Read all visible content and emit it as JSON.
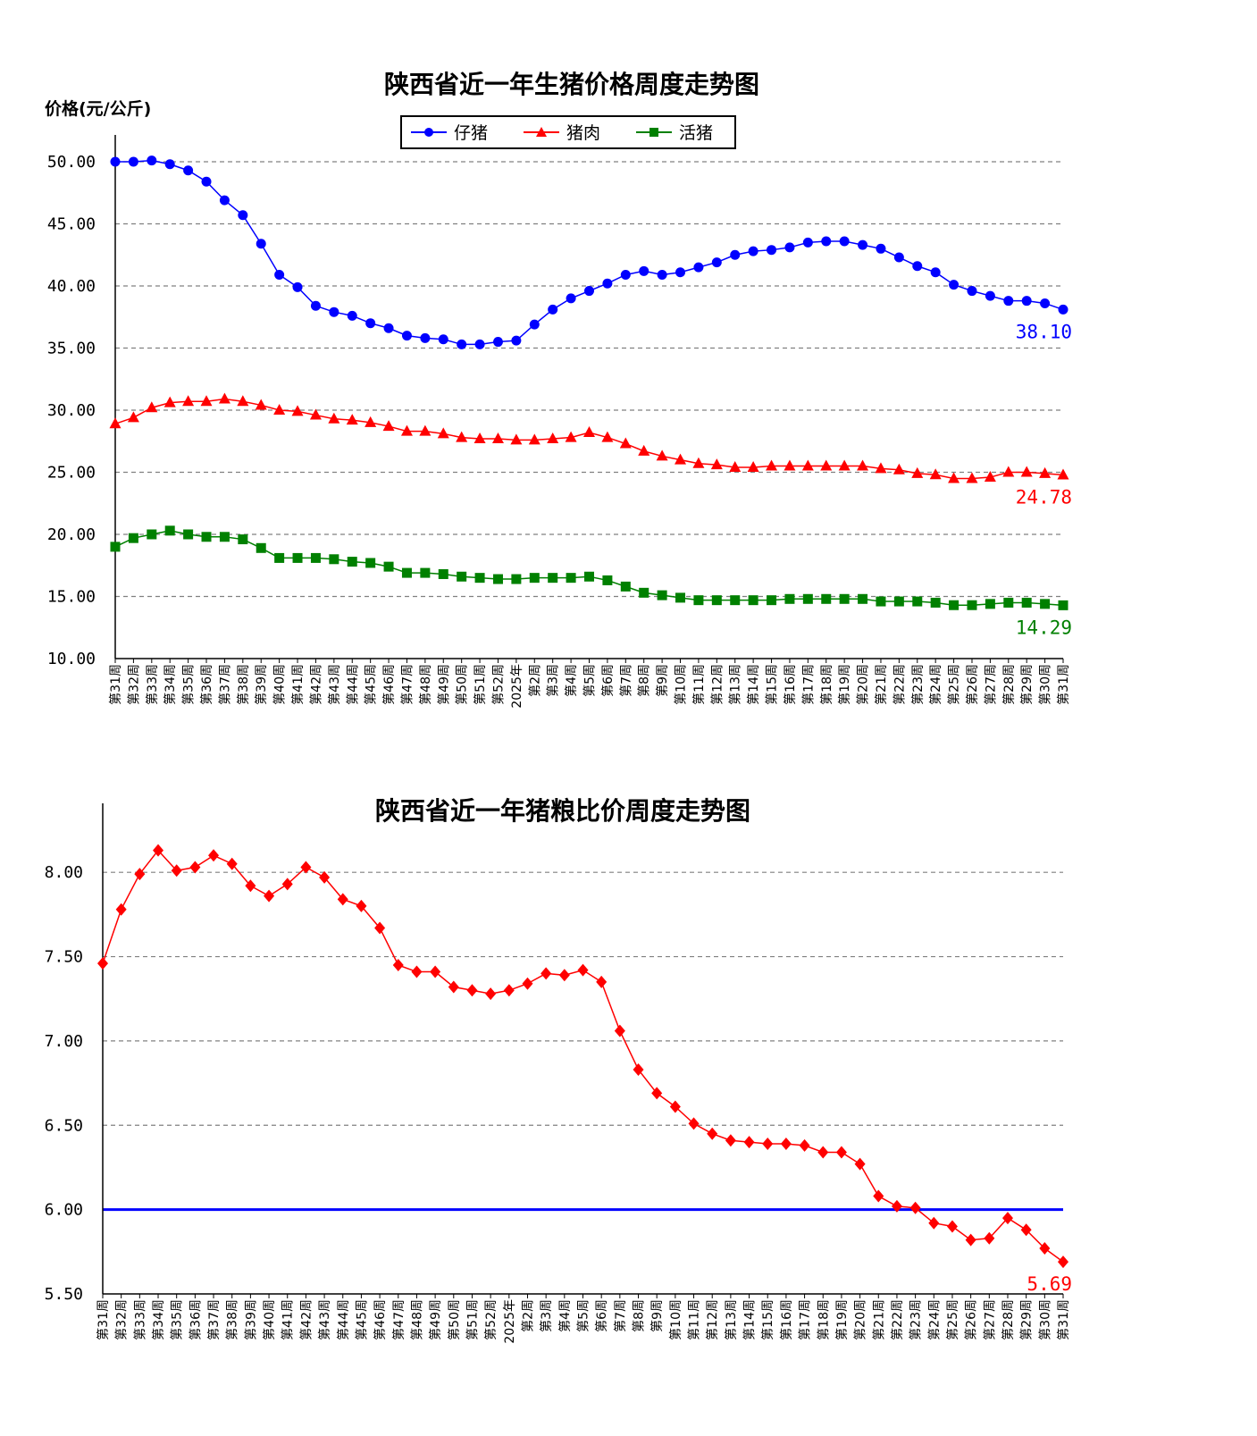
{
  "chart_data": [
    {
      "type": "line",
      "title": "陕西省近一年生猪价格周度走势图",
      "ylabel": "价格(元/公斤)",
      "xlabel": "",
      "ylim": [
        10,
        50
      ],
      "yticks": [
        "50.00",
        "45.00",
        "40.00",
        "35.00",
        "30.00",
        "25.00",
        "20.00",
        "15.00",
        "10.00"
      ],
      "grid": "horizontal-dashed",
      "legend_position": "top-center",
      "categories": [
        "第31周",
        "第32周",
        "第33周",
        "第34周",
        "第35周",
        "第36周",
        "第37周",
        "第38周",
        "第39周",
        "第40周",
        "第41周",
        "第42周",
        "第43周",
        "第44周",
        "第45周",
        "第46周",
        "第47周",
        "第48周",
        "第49周",
        "第50周",
        "第51周",
        "第52周",
        "2025年",
        "第2周",
        "第3周",
        "第4周",
        "第5周",
        "第6周",
        "第7周",
        "第8周",
        "第9周",
        "第10周",
        "第11周",
        "第12周",
        "第13周",
        "第14周",
        "第15周",
        "第16周",
        "第17周",
        "第18周",
        "第19周",
        "第20周",
        "第21周",
        "第22周",
        "第23周",
        "第24周",
        "第25周",
        "第26周",
        "第27周",
        "第28周",
        "第29周",
        "第30周",
        "第31周"
      ],
      "series": [
        {
          "name": "仔猪",
          "color": "#0000ff",
          "marker": "circle",
          "end_label": "38.10",
          "values": [
            50.0,
            50.0,
            50.1,
            49.8,
            49.3,
            48.4,
            46.9,
            45.7,
            43.4,
            40.9,
            39.9,
            38.4,
            37.9,
            37.6,
            37.0,
            36.6,
            36.0,
            35.8,
            35.7,
            35.3,
            35.3,
            35.5,
            35.6,
            36.9,
            38.1,
            39.0,
            39.6,
            40.2,
            40.9,
            41.2,
            40.9,
            41.1,
            41.5,
            41.9,
            42.5,
            42.8,
            42.9,
            43.1,
            43.5,
            43.6,
            43.6,
            43.3,
            43.0,
            42.3,
            41.6,
            41.1,
            40.1,
            39.6,
            39.2,
            38.8,
            38.8,
            38.6,
            38.1
          ]
        },
        {
          "name": "猪肉",
          "color": "#ff0000",
          "marker": "triangle",
          "end_label": "24.78",
          "values": [
            28.9,
            29.4,
            30.2,
            30.6,
            30.7,
            30.7,
            30.9,
            30.7,
            30.4,
            30.0,
            29.9,
            29.6,
            29.3,
            29.2,
            29.0,
            28.7,
            28.3,
            28.3,
            28.1,
            27.8,
            27.7,
            27.7,
            27.6,
            27.6,
            27.7,
            27.8,
            28.2,
            27.8,
            27.3,
            26.7,
            26.3,
            26.0,
            25.7,
            25.6,
            25.4,
            25.4,
            25.5,
            25.5,
            25.5,
            25.5,
            25.5,
            25.5,
            25.3,
            25.2,
            24.9,
            24.8,
            24.5,
            24.5,
            24.6,
            25.0,
            25.0,
            24.9,
            24.78
          ]
        },
        {
          "name": "活猪",
          "color": "#008000",
          "marker": "square",
          "end_label": "14.29",
          "values": [
            19.0,
            19.7,
            20.0,
            20.3,
            20.0,
            19.8,
            19.8,
            19.6,
            18.9,
            18.1,
            18.1,
            18.1,
            18.0,
            17.8,
            17.7,
            17.4,
            16.9,
            16.9,
            16.8,
            16.6,
            16.5,
            16.4,
            16.4,
            16.5,
            16.5,
            16.5,
            16.6,
            16.3,
            15.8,
            15.3,
            15.1,
            14.9,
            14.7,
            14.7,
            14.7,
            14.7,
            14.7,
            14.8,
            14.8,
            14.8,
            14.8,
            14.8,
            14.6,
            14.6,
            14.6,
            14.5,
            14.3,
            14.3,
            14.4,
            14.5,
            14.5,
            14.4,
            14.29
          ]
        }
      ]
    },
    {
      "type": "line",
      "title": "陕西省近一年猪粮比价周度走势图",
      "xlabel": "",
      "ylabel": "",
      "ylim": [
        5.5,
        8.25
      ],
      "yticks": [
        "8.00",
        "7.50",
        "7.00",
        "6.50",
        "6.00",
        "5.50"
      ],
      "grid": "horizontal-dashed",
      "reference_line": {
        "value": 6.0,
        "color": "#0000ff"
      },
      "categories": [
        "第31周",
        "第32周",
        "第33周",
        "第34周",
        "第35周",
        "第36周",
        "第37周",
        "第38周",
        "第39周",
        "第40周",
        "第41周",
        "第42周",
        "第43周",
        "第44周",
        "第45周",
        "第46周",
        "第47周",
        "第48周",
        "第49周",
        "第50周",
        "第51周",
        "第52周",
        "2025年",
        "第2周",
        "第3周",
        "第4周",
        "第5周",
        "第6周",
        "第7周",
        "第8周",
        "第9周",
        "第10周",
        "第11周",
        "第12周",
        "第13周",
        "第14周",
        "第15周",
        "第16周",
        "第17周",
        "第18周",
        "第19周",
        "第20周",
        "第21周",
        "第22周",
        "第23周",
        "第24周",
        "第25周",
        "第26周",
        "第27周",
        "第28周",
        "第29周",
        "第30周",
        "第31周"
      ],
      "series": [
        {
          "name": "",
          "color": "#ff0000",
          "marker": "diamond",
          "end_label": "5.69",
          "values": [
            7.46,
            7.78,
            7.99,
            8.13,
            8.01,
            8.03,
            8.1,
            8.05,
            7.92,
            7.86,
            7.93,
            8.03,
            7.97,
            7.84,
            7.8,
            7.67,
            7.45,
            7.41,
            7.41,
            7.32,
            7.3,
            7.28,
            7.3,
            7.34,
            7.4,
            7.39,
            7.42,
            7.35,
            7.06,
            6.83,
            6.69,
            6.61,
            6.51,
            6.45,
            6.41,
            6.4,
            6.39,
            6.39,
            6.38,
            6.34,
            6.34,
            6.27,
            6.08,
            6.02,
            6.01,
            5.92,
            5.9,
            5.82,
            5.83,
            5.95,
            5.88,
            5.77,
            5.69
          ]
        }
      ]
    }
  ]
}
